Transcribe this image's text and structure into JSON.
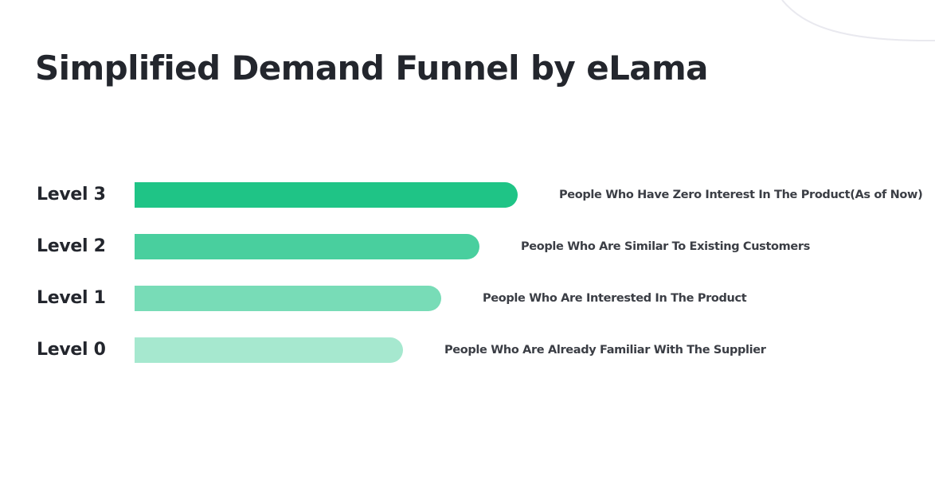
{
  "title": "Simplified Demand Funnel by eLama",
  "colors": {
    "text": "#23262d",
    "level_3": "#1fc486",
    "level_2": "#49cf9e",
    "level_1": "#78dcb7",
    "level_0": "#a6e8cf",
    "decorative_arc": "#e9e9ef"
  },
  "levels": [
    {
      "label": "Level 3",
      "description": "People Who Have Zero Interest In The Product(As of Now)",
      "color": "#1fc486"
    },
    {
      "label": "Level 2",
      "description": "People Who Are Similar To Existing Customers",
      "color": "#49cf9e"
    },
    {
      "label": "Level 1",
      "description": "People Who Are Interested In The Product",
      "color": "#78dcb7"
    },
    {
      "label": "Level 0",
      "description": "People Who Are Already Familiar With The Supplier",
      "color": "#a6e8cf"
    }
  ]
}
